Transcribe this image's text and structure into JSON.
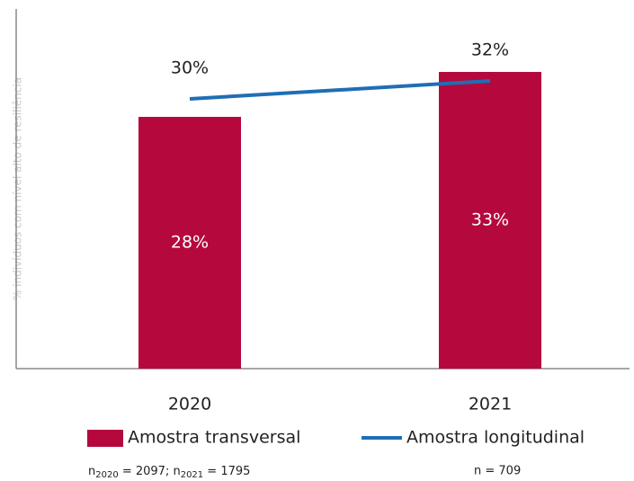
{
  "chart_data": {
    "type": "bar_line",
    "y_label": "% indivíduos com nível alto de resiliência",
    "categories": [
      "2020",
      "2021"
    ],
    "ylim": [
      0,
      40
    ],
    "series": [
      {
        "name": "Amostra transversal",
        "type": "bar",
        "color": "#b5093e",
        "values": [
          28,
          33
        ],
        "value_labels": [
          "28%",
          "33%"
        ]
      },
      {
        "name": "Amostra longitudinal",
        "type": "line",
        "color": "#1f6eb5",
        "values": [
          30,
          32
        ],
        "value_labels": [
          "30%",
          "32%"
        ]
      }
    ],
    "notes": [
      {
        "parts": [
          "n",
          "2020",
          " = 2097; n",
          "2021",
          " = 1795"
        ]
      },
      {
        "parts": [
          "n = 709"
        ]
      }
    ]
  }
}
